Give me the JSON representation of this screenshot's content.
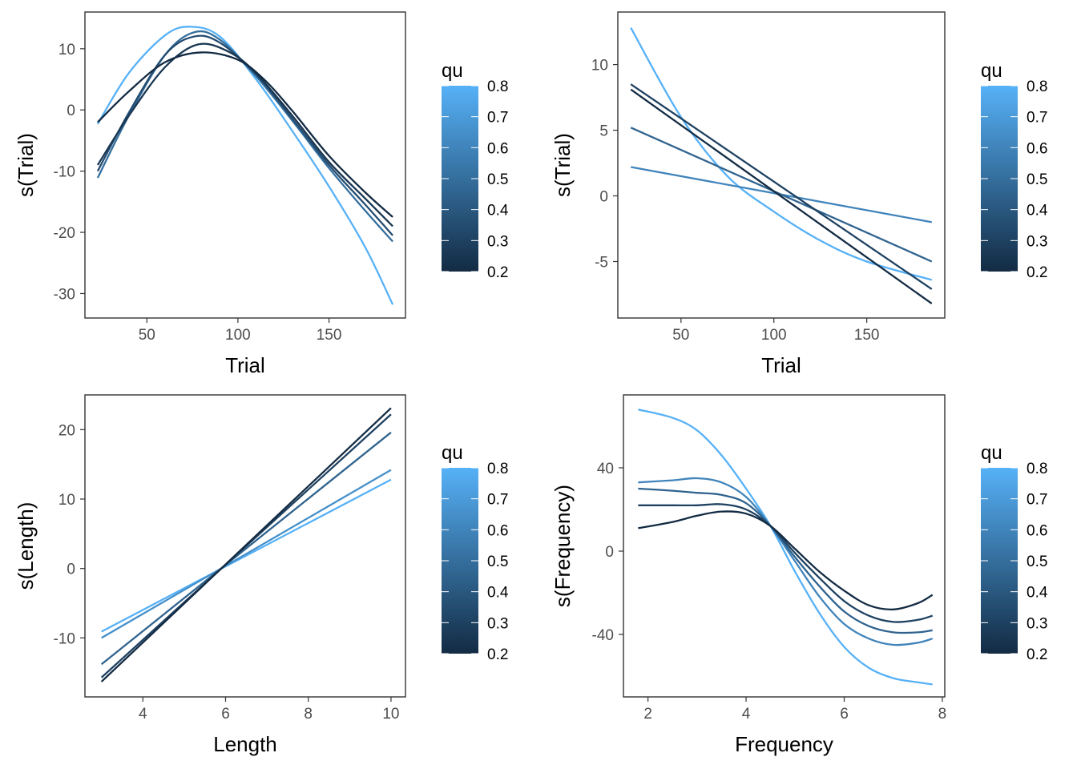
{
  "colorbar": {
    "low": "#132B43",
    "high": "#56B1F7",
    "qmin": 0.2,
    "qmax": 0.8
  },
  "chart_data": [
    {
      "type": "line",
      "xlabel": "Trial",
      "ylabel": "s(Trial)",
      "xlim": [
        16,
        192
      ],
      "ylim": [
        -34,
        16
      ],
      "xticks": [
        50,
        100,
        150
      ],
      "yticks": [
        10,
        0,
        -10,
        -20,
        -30
      ],
      "ytick_labels": [
        "10",
        "0",
        "-10",
        "-20",
        "-30"
      ],
      "legend": {
        "title": "qu",
        "labels": [
          "0.8",
          "0.7",
          "0.6",
          "0.5",
          "0.4",
          "0.3",
          "0.2"
        ],
        "position": "right"
      },
      "series": [
        {
          "qu": 0.8,
          "x": [
            23,
            40,
            60,
            74,
            90,
            110,
            130,
            150,
            170,
            185
          ],
          "y": [
            -2.3,
            6.0,
            12.2,
            13.6,
            12.0,
            5.0,
            -3.5,
            -12.5,
            -22.5,
            -31.8
          ]
        },
        {
          "qu": 0.5,
          "x": [
            23,
            40,
            60,
            76,
            90,
            110,
            130,
            150,
            170,
            185
          ],
          "y": [
            -11.1,
            -1.0,
            9.0,
            12.7,
            11.5,
            5.5,
            -1.8,
            -9.5,
            -16.5,
            -21.5
          ]
        },
        {
          "qu": 0.35,
          "x": [
            23,
            40,
            60,
            76,
            90,
            110,
            130,
            150,
            170,
            185
          ],
          "y": [
            -10.0,
            -0.5,
            9.0,
            12.0,
            11.0,
            5.8,
            -1.5,
            -9.0,
            -15.5,
            -20.5
          ]
        },
        {
          "qu": 0.25,
          "x": [
            23,
            40,
            60,
            78,
            95,
            110,
            130,
            150,
            170,
            185
          ],
          "y": [
            -9.0,
            -1.0,
            7.0,
            10.7,
            9.5,
            6.0,
            -1.0,
            -8.5,
            -14.5,
            -19.0
          ]
        },
        {
          "qu": 0.2,
          "x": [
            23,
            40,
            60,
            80,
            100,
            115,
            130,
            150,
            170,
            185
          ],
          "y": [
            -2.0,
            3.0,
            7.8,
            9.4,
            8.2,
            4.8,
            -0.2,
            -7.5,
            -13.5,
            -17.5
          ]
        }
      ]
    },
    {
      "type": "line",
      "xlabel": "Trial",
      "ylabel": "s(Trial)",
      "xlim": [
        16,
        192
      ],
      "ylim": [
        -9.3,
        14.0
      ],
      "xticks": [
        50,
        100,
        150
      ],
      "yticks": [
        10,
        5,
        0,
        -5
      ],
      "ytick_labels": [
        "10",
        "5",
        "0",
        "-5"
      ],
      "legend": {
        "title": "qu",
        "labels": [
          "0.8",
          "0.7",
          "0.6",
          "0.5",
          "0.4",
          "0.3",
          "0.2"
        ],
        "position": "right"
      },
      "series": [
        {
          "qu": 0.8,
          "x": [
            23,
            50,
            75,
            100,
            125,
            150,
            185
          ],
          "y": [
            12.8,
            6.0,
            1.5,
            -1.2,
            -3.4,
            -5.0,
            -6.4
          ]
        },
        {
          "qu": 0.6,
          "x": [
            23,
            185
          ],
          "y": [
            2.2,
            -2.0
          ]
        },
        {
          "qu": 0.45,
          "x": [
            23,
            185
          ],
          "y": [
            5.2,
            -5.0
          ]
        },
        {
          "qu": 0.3,
          "x": [
            23,
            185
          ],
          "y": [
            8.5,
            -7.1
          ]
        },
        {
          "qu": 0.2,
          "x": [
            23,
            185
          ],
          "y": [
            8.1,
            -8.2
          ]
        }
      ]
    },
    {
      "type": "line",
      "xlabel": "Length",
      "ylabel": "s(Length)",
      "xlim": [
        2.6,
        10.35
      ],
      "ylim": [
        -18.5,
        25.0
      ],
      "xticks": [
        4,
        6,
        8,
        10
      ],
      "yticks": [
        20,
        10,
        0,
        -10
      ],
      "ytick_labels": [
        "20",
        "10",
        "0",
        "-10"
      ],
      "legend": {
        "title": "qu",
        "labels": [
          "0.8",
          "0.7",
          "0.6",
          "0.5",
          "0.4",
          "0.3",
          "0.2"
        ],
        "position": "right"
      },
      "series": [
        {
          "qu": 0.8,
          "x": [
            3,
            10
          ],
          "y": [
            -9.1,
            12.8
          ]
        },
        {
          "qu": 0.65,
          "x": [
            3,
            10
          ],
          "y": [
            -10.0,
            14.2
          ]
        },
        {
          "qu": 0.45,
          "x": [
            3,
            10
          ],
          "y": [
            -13.8,
            19.6
          ]
        },
        {
          "qu": 0.3,
          "x": [
            3,
            10
          ],
          "y": [
            -15.7,
            22.2
          ]
        },
        {
          "qu": 0.2,
          "x": [
            3,
            10
          ],
          "y": [
            -16.3,
            23.1
          ]
        }
      ]
    },
    {
      "type": "line",
      "xlabel": "Frequency",
      "ylabel": "s(Frequency)",
      "xlim": [
        1.5,
        8.05
      ],
      "ylim": [
        -70,
        75
      ],
      "xticks": [
        2,
        4,
        6,
        8
      ],
      "yticks": [
        40,
        0,
        -40
      ],
      "ytick_labels": [
        "40",
        "0",
        "-40"
      ],
      "legend": {
        "title": "qu",
        "labels": [
          "0.8",
          "0.7",
          "0.6",
          "0.5",
          "0.4",
          "0.3",
          "0.2"
        ],
        "position": "right"
      },
      "series": [
        {
          "qu": 0.8,
          "x": [
            1.8,
            2.5,
            3.0,
            3.5,
            4.0,
            4.5,
            5.0,
            5.5,
            6.0,
            6.5,
            7.0,
            7.5,
            7.8
          ],
          "y": [
            68,
            64,
            58,
            46,
            30,
            12,
            -10,
            -30,
            -46,
            -56,
            -61,
            -63,
            -64
          ]
        },
        {
          "qu": 0.6,
          "x": [
            1.8,
            2.5,
            3.0,
            3.5,
            4.0,
            4.5,
            5.0,
            5.5,
            6.0,
            6.5,
            7.0,
            7.5,
            7.8
          ],
          "y": [
            33,
            34,
            35,
            33,
            26,
            12,
            -5,
            -22,
            -35,
            -42,
            -45,
            -44,
            -42
          ]
        },
        {
          "qu": 0.45,
          "x": [
            1.8,
            2.5,
            3.0,
            3.5,
            4.0,
            4.5,
            5.0,
            5.5,
            6.0,
            6.5,
            7.0,
            7.5,
            7.8
          ],
          "y": [
            30,
            29,
            28,
            27,
            23,
            12,
            -3,
            -17,
            -29,
            -36,
            -39,
            -39,
            -38
          ]
        },
        {
          "qu": 0.3,
          "x": [
            1.8,
            2.5,
            3.0,
            3.5,
            4.0,
            4.5,
            5.0,
            5.5,
            6.0,
            6.5,
            7.0,
            7.5,
            7.8
          ],
          "y": [
            22,
            22,
            22,
            22.5,
            20,
            12,
            -1,
            -13,
            -24,
            -31,
            -34,
            -33,
            -31
          ]
        },
        {
          "qu": 0.2,
          "x": [
            1.8,
            2.5,
            3.0,
            3.5,
            4.0,
            4.5,
            5.0,
            5.5,
            6.0,
            6.5,
            7.0,
            7.5,
            7.8
          ],
          "y": [
            11,
            14,
            17,
            19,
            18,
            12,
            1,
            -10,
            -19,
            -26,
            -28,
            -25,
            -21
          ]
        }
      ]
    }
  ]
}
